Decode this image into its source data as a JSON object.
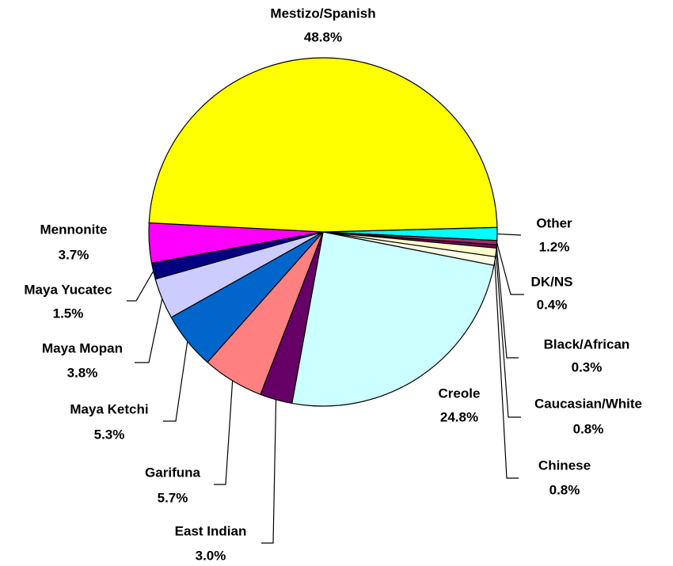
{
  "chart_data": {
    "type": "pie",
    "categories": [
      "Other",
      "DK/NS",
      "Black/African",
      "Caucasian/White",
      "Chinese",
      "Creole",
      "East Indian",
      "Garifuna",
      "Maya Ketchi",
      "Maya Mopan",
      "Maya Yucatec",
      "Mennonite",
      "Mestizo/Spanish"
    ],
    "values": [
      1.2,
      0.4,
      0.3,
      0.8,
      0.8,
      24.8,
      3.0,
      5.7,
      5.3,
      3.8,
      1.5,
      3.7,
      48.8
    ],
    "value_labels": [
      "1.2%",
      "0.4%",
      "0.3%",
      "0.8%",
      "0.8%",
      "24.8%",
      "3.0%",
      "5.7%",
      "5.3%",
      "3.8%",
      "1.5%",
      "3.7%",
      "48.8%"
    ],
    "colors": [
      "#00ffff",
      "#993366",
      "#800060",
      "#ffffcc",
      "#ffffe8",
      "#ccffff",
      "#660066",
      "#ff8080",
      "#0066cc",
      "#ccccff",
      "#000080",
      "#ff00ff",
      "#ffff00"
    ]
  }
}
